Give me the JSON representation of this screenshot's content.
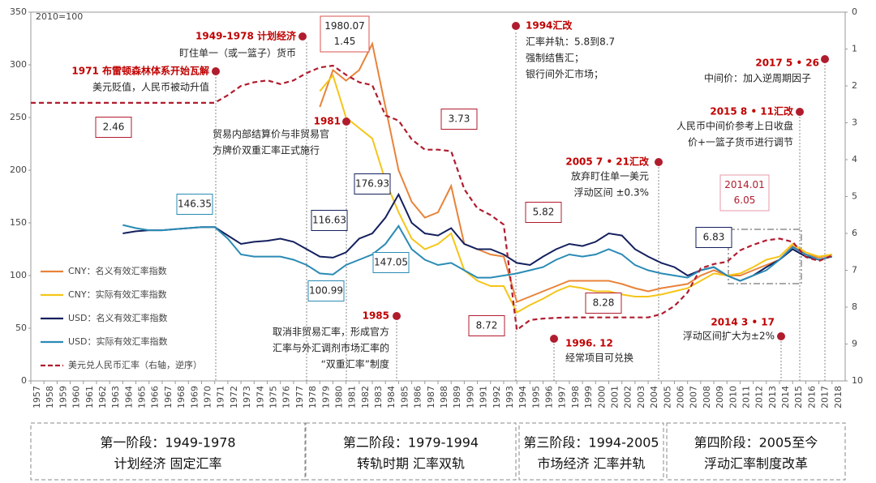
{
  "chart_data": {
    "type": "line",
    "base_note": "2010=100",
    "x": [
      1957,
      1958,
      1959,
      1960,
      1961,
      1962,
      1963,
      1964,
      1965,
      1966,
      1967,
      1968,
      1969,
      1970,
      1971,
      1972,
      1973,
      1974,
      1975,
      1976,
      1977,
      1978,
      1979,
      1980,
      1981,
      1982,
      1983,
      1984,
      1985,
      1986,
      1987,
      1988,
      1989,
      1990,
      1991,
      1992,
      1993,
      1994,
      1995,
      1996,
      1997,
      1998,
      1999,
      2000,
      2001,
      2002,
      2003,
      2004,
      2005,
      2006,
      2007,
      2008,
      2009,
      2010,
      2011,
      2012,
      2013,
      2014,
      2015,
      2016,
      2017,
      2018
    ],
    "xlim": [
      1957,
      2019
    ],
    "xticks": [
      1957,
      1958,
      1959,
      1960,
      1961,
      1962,
      1963,
      1964,
      1965,
      1966,
      1967,
      1968,
      1969,
      1970,
      1971,
      1972,
      1973,
      1974,
      1975,
      1976,
      1977,
      1978,
      1979,
      1980,
      1981,
      1982,
      1983,
      1984,
      1985,
      1986,
      1987,
      1988,
      1989,
      1990,
      1991,
      1992,
      1993,
      1994,
      1995,
      1996,
      1997,
      1998,
      1999,
      2000,
      2001,
      2002,
      2003,
      2004,
      2005,
      2006,
      2007,
      2008,
      2009,
      2010,
      2011,
      2012,
      2013,
      2014,
      2015,
      2016,
      2017,
      2018
    ],
    "ylim": [
      0,
      350
    ],
    "yticks": [
      0,
      50,
      100,
      150,
      200,
      250,
      300,
      350
    ],
    "y2lim": [
      10,
      0
    ],
    "y2ticks": [
      0,
      1,
      2,
      3,
      4,
      5,
      6,
      7,
      8,
      9,
      10
    ],
    "series": [
      {
        "name": "CNY：名义有效汇率指数",
        "color": "#e8833a",
        "dash": false,
        "axis": "y",
        "values": [
          null,
          null,
          null,
          null,
          null,
          null,
          null,
          null,
          null,
          null,
          null,
          null,
          null,
          null,
          null,
          null,
          null,
          null,
          null,
          null,
          null,
          null,
          260,
          295,
          285,
          295,
          320,
          260,
          200,
          170,
          155,
          160,
          185,
          130,
          125,
          120,
          118,
          75,
          80,
          85,
          90,
          95,
          95,
          95,
          95,
          92,
          88,
          85,
          88,
          90,
          92,
          100,
          105,
          100,
          100,
          105,
          110,
          115,
          128,
          120,
          117,
          120
        ]
      },
      {
        "name": "CNY：实际有效汇率指数",
        "color": "#f5c518",
        "dash": false,
        "axis": "y",
        "values": [
          null,
          null,
          null,
          null,
          null,
          null,
          null,
          null,
          null,
          null,
          null,
          null,
          null,
          null,
          null,
          null,
          null,
          null,
          null,
          null,
          null,
          null,
          275,
          290,
          250,
          240,
          230,
          190,
          160,
          135,
          125,
          130,
          140,
          105,
          95,
          90,
          90,
          65,
          72,
          78,
          85,
          90,
          88,
          85,
          85,
          82,
          80,
          80,
          82,
          85,
          88,
          95,
          102,
          100,
          102,
          108,
          115,
          118,
          130,
          122,
          118,
          120
        ]
      },
      {
        "name": "USD：名义有效汇率指数",
        "color": "#14205e",
        "dash": false,
        "axis": "y",
        "values": [
          null,
          null,
          null,
          null,
          null,
          null,
          null,
          140,
          142,
          143,
          143,
          144,
          145,
          146,
          146,
          138,
          130,
          132,
          133,
          135,
          132,
          125,
          118,
          117,
          122,
          135,
          140,
          155,
          177,
          150,
          140,
          138,
          145,
          130,
          125,
          125,
          120,
          112,
          110,
          118,
          125,
          130,
          128,
          132,
          140,
          138,
          125,
          118,
          112,
          108,
          100,
          105,
          108,
          100,
          95,
          100,
          108,
          115,
          125,
          118,
          115,
          118
        ]
      },
      {
        "name": "USD：实际有效汇率指数",
        "color": "#2a8bb5",
        "dash": false,
        "axis": "y",
        "values": [
          null,
          null,
          null,
          null,
          null,
          null,
          null,
          148,
          145,
          143,
          143,
          144,
          145,
          146,
          146,
          135,
          120,
          118,
          118,
          118,
          115,
          110,
          102,
          101,
          110,
          115,
          120,
          130,
          147,
          125,
          115,
          110,
          112,
          105,
          98,
          98,
          100,
          102,
          105,
          108,
          115,
          120,
          118,
          120,
          125,
          120,
          110,
          105,
          102,
          100,
          98,
          105,
          108,
          100,
          95,
          100,
          105,
          115,
          127,
          120,
          115,
          118
        ]
      },
      {
        "name": "美元兑人民币汇率（右轴，逆序）",
        "color": "#b01c2e",
        "dash": true,
        "axis": "y2",
        "values": [
          2.46,
          2.46,
          2.46,
          2.46,
          2.46,
          2.46,
          2.46,
          2.46,
          2.46,
          2.46,
          2.46,
          2.46,
          2.46,
          2.46,
          2.46,
          2.25,
          2.0,
          1.9,
          1.85,
          1.95,
          1.85,
          1.65,
          1.5,
          1.45,
          1.7,
          1.9,
          1.98,
          2.8,
          2.94,
          3.45,
          3.73,
          3.73,
          3.77,
          4.8,
          5.32,
          5.5,
          5.76,
          8.62,
          8.35,
          8.31,
          8.29,
          8.28,
          8.28,
          8.28,
          8.28,
          8.28,
          8.28,
          8.28,
          8.19,
          7.97,
          7.6,
          6.95,
          6.83,
          6.77,
          6.46,
          6.31,
          6.19,
          6.14,
          6.23,
          6.64,
          6.75,
          6.6
        ]
      }
    ],
    "callouts": [
      [
        "2.46"
      ],
      [
        "1980.07",
        "1.45"
      ],
      [
        "3.73"
      ],
      [
        "146.35"
      ],
      [
        "116.63"
      ],
      [
        "176.93"
      ],
      [
        "147.05"
      ],
      [
        "100.99"
      ],
      [
        "5.82"
      ],
      [
        "8.72"
      ],
      [
        "8.28"
      ],
      [
        "6.83"
      ],
      [
        "2014.01",
        "6.05"
      ]
    ],
    "annotations": [
      {
        "title": "1971 布雷顿森林体系开始瓦解",
        "lines": [
          "美元贬值，人民币被动升值"
        ]
      },
      {
        "title": "1949-1978 计划经济",
        "lines": [
          "盯住单一（或一篮子）货币"
        ]
      },
      {
        "title": "1981",
        "lines": [
          "贸易内部结算价与非贸易官",
          "方牌价双重汇率正式施行"
        ]
      },
      {
        "title": "1985",
        "lines": [
          "取消非贸易汇率，形成官方",
          "汇率与外汇调剂市场汇率的",
          "“双重汇率”制度"
        ]
      },
      {
        "title": "1994汇改",
        "lines": [
          "汇率并轨：5.8到8.7",
          "强制结售汇；",
          "银行间外汇市场；"
        ]
      },
      {
        "title": "1996. 12",
        "lines": [
          "经常项目可兑换"
        ]
      },
      {
        "title": "2005 7 • 21汇改",
        "lines": [
          "放弃盯住单一美元",
          "浮动区间 ±0.3%"
        ]
      },
      {
        "title": "2014 3 • 17",
        "lines": [
          "浮动区间扩大为±2%"
        ]
      },
      {
        "title": "2015 8 • 11汇改",
        "lines": [
          "人民币中间价参考上日收盘",
          "价+一篮子货币进行调节"
        ]
      },
      {
        "title": "2017 5 • 26",
        "lines": [
          "中间价：加入逆周期因子"
        ]
      }
    ],
    "stages": [
      {
        "title": "第一阶段：1949-1978",
        "subtitle": "计划经济 固定汇率"
      },
      {
        "title": "第二阶段：1979-1994",
        "subtitle": "转轨时期 汇率双轨"
      },
      {
        "title": "第三阶段：1994-2005",
        "subtitle": "市场经济 汇率并轨"
      },
      {
        "title": "第四阶段：2005至今",
        "subtitle": "浮动汇率制度改革"
      }
    ]
  }
}
